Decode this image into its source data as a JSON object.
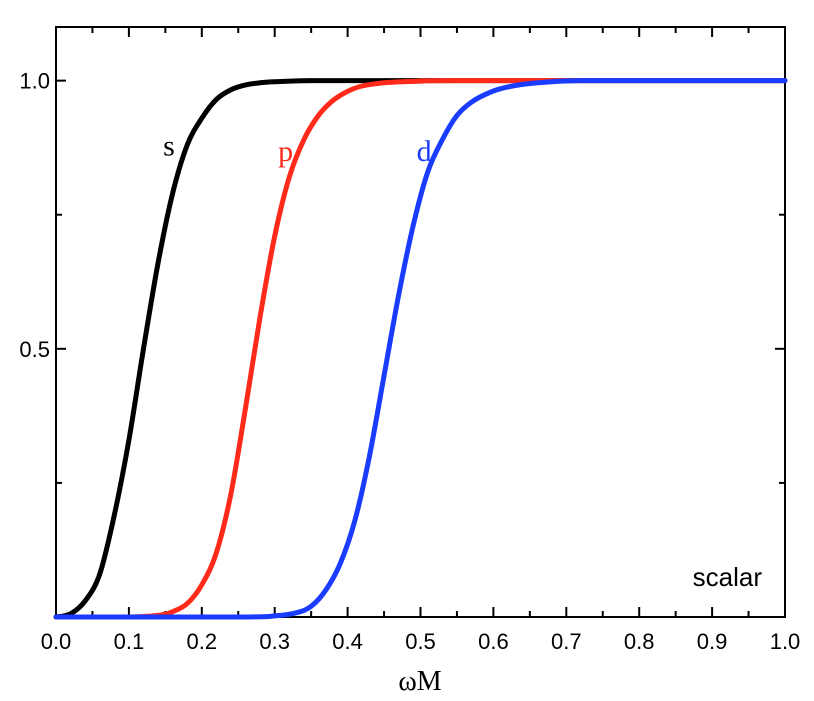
{
  "chart_data": {
    "type": "line",
    "title": "",
    "xlabel": "ωM",
    "ylabel": "",
    "xlim": [
      0,
      1.0
    ],
    "ylim": [
      0,
      1.1
    ],
    "xticks": [
      "0.0",
      "0.1",
      "0.2",
      "0.3",
      "0.4",
      "0.5",
      "0.6",
      "0.7",
      "0.8",
      "0.9",
      "1.0"
    ],
    "yticks": [
      "0.5",
      "1.0"
    ],
    "annotation": "scalar",
    "grid": false,
    "series": [
      {
        "name": "s",
        "color": "#000000",
        "x": [
          0.0,
          0.02,
          0.04,
          0.06,
          0.08,
          0.1,
          0.12,
          0.14,
          0.16,
          0.18,
          0.2,
          0.22,
          0.24,
          0.26,
          0.28,
          0.3,
          0.35,
          0.4,
          0.45,
          1.0
        ],
        "y": [
          0.0,
          0.006,
          0.03,
          0.08,
          0.19,
          0.33,
          0.5,
          0.66,
          0.79,
          0.88,
          0.93,
          0.965,
          0.983,
          0.992,
          0.996,
          0.998,
          1.0,
          1.0,
          1.0,
          1.0
        ]
      },
      {
        "name": "p",
        "color": "#ff2a1a",
        "x": [
          0.0,
          0.1,
          0.14,
          0.16,
          0.18,
          0.2,
          0.22,
          0.24,
          0.26,
          0.28,
          0.3,
          0.32,
          0.34,
          0.36,
          0.38,
          0.4,
          0.42,
          0.45,
          0.5,
          0.55,
          1.0
        ],
        "y": [
          0.0,
          0.0,
          0.003,
          0.01,
          0.025,
          0.06,
          0.12,
          0.23,
          0.39,
          0.56,
          0.71,
          0.82,
          0.89,
          0.935,
          0.963,
          0.98,
          0.99,
          0.996,
          0.999,
          1.0,
          1.0
        ]
      },
      {
        "name": "d",
        "color": "#1a3cff",
        "x": [
          0.0,
          0.25,
          0.3,
          0.33,
          0.35,
          0.37,
          0.39,
          0.41,
          0.43,
          0.45,
          0.47,
          0.49,
          0.51,
          0.53,
          0.55,
          0.57,
          0.59,
          0.61,
          0.64,
          0.68,
          0.72,
          0.8,
          1.0
        ],
        "y": [
          0.0,
          0.0,
          0.002,
          0.008,
          0.02,
          0.05,
          0.1,
          0.18,
          0.3,
          0.45,
          0.6,
          0.73,
          0.83,
          0.89,
          0.935,
          0.96,
          0.975,
          0.985,
          0.993,
          0.998,
          1.0,
          1.0,
          1.0
        ]
      }
    ],
    "series_label_positions": [
      {
        "name": "s",
        "x": 0.155,
        "y": 0.86
      },
      {
        "name": "p",
        "x": 0.315,
        "y": 0.85
      },
      {
        "name": "d",
        "x": 0.505,
        "y": 0.85
      }
    ]
  }
}
